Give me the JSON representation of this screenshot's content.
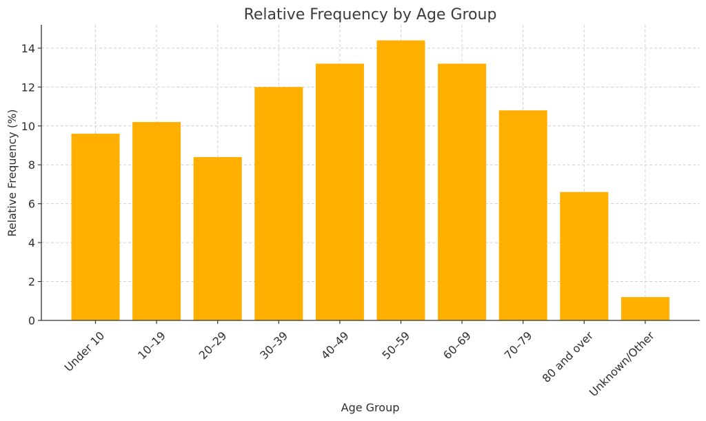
{
  "chart_data": {
    "type": "bar",
    "title": "Relative Frequency by Age Group",
    "xlabel": "Age Group",
    "ylabel": "Relative Frequency (%)",
    "categories": [
      "Under 10",
      "10–19",
      "20–29",
      "30–39",
      "40–49",
      "50–59",
      "60–69",
      "70–79",
      "80 and over",
      "Unknown/Other"
    ],
    "values": [
      9.6,
      10.2,
      8.4,
      12.0,
      13.2,
      14.4,
      13.2,
      10.8,
      6.6,
      1.2
    ],
    "ylim": [
      0,
      15.2
    ],
    "yticks": [
      0,
      2,
      4,
      6,
      8,
      10,
      12,
      14
    ],
    "grid": true,
    "bar_color": "#ffaf00"
  }
}
